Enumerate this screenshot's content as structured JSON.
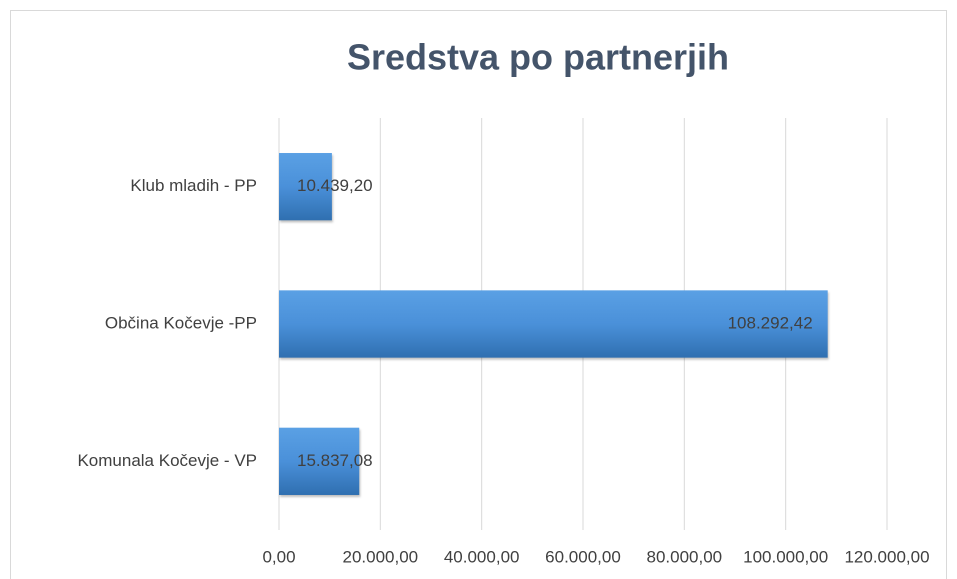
{
  "chart_data": {
    "type": "hbar",
    "title": "Sredstva po partnerjih",
    "categories": [
      "Klub mladih - PP",
      "Občina Kočevje -PP",
      "Komunala Kočevje - VP"
    ],
    "values": [
      10439.2,
      108292.42,
      15837.08
    ],
    "value_labels": [
      "10.439,20",
      "108.292,42",
      "15.837,08"
    ],
    "color": "#4a90d9",
    "xlim": [
      0,
      120000
    ],
    "xticks": [
      {
        "value": 0,
        "label": "0,00"
      },
      {
        "value": 20000,
        "label": "20.000,00"
      },
      {
        "value": 40000,
        "label": "40.000,00"
      },
      {
        "value": 60000,
        "label": "60.000,00"
      },
      {
        "value": 80000,
        "label": "80.000,00"
      },
      {
        "value": 100000,
        "label": "100.000,00"
      },
      {
        "value": 120000,
        "label": "120.000,00"
      }
    ],
    "grid": true
  }
}
